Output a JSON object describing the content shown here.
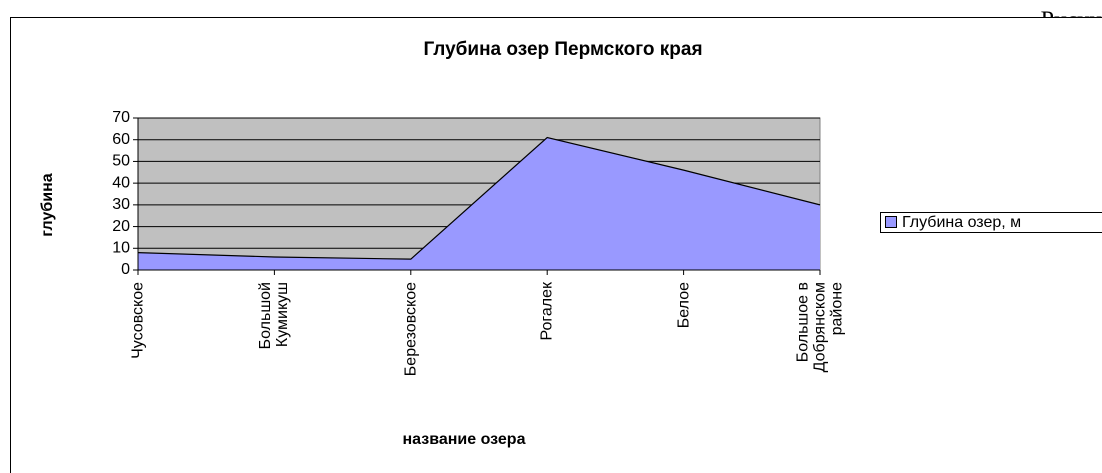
{
  "corner_text": "Рисун",
  "chart_data": {
    "type": "area",
    "title": "Глубина озер Пермского края",
    "x_label": "название озера",
    "y_label": "глубина",
    "categories": [
      "Чусовское",
      "Большой Кумикуш",
      "Березовское",
      "Рогалек",
      "Белое",
      "Большое в Добрянском районе"
    ],
    "series": [
      {
        "name": "Глубина озер, м",
        "color": "#9999ff",
        "values": [
          8,
          6,
          5,
          61,
          46,
          30
        ]
      }
    ],
    "ylim": [
      0,
      70
    ],
    "yticks": [
      0,
      10,
      20,
      30,
      40,
      50,
      60,
      70
    ],
    "grid": true,
    "legend": "right"
  }
}
